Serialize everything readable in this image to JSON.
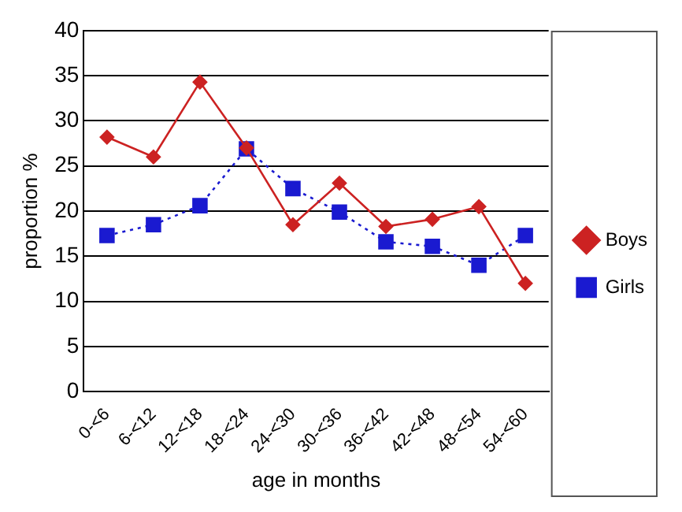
{
  "chart_data": {
    "type": "line",
    "xlabel": "age in months",
    "ylabel": "proportion %",
    "categories": [
      "0-<6",
      "6-<12",
      "12-<18",
      "18-<24",
      "24-<30",
      "30-<36",
      "36-<42",
      "42-<48",
      "48-<54",
      "54-<60"
    ],
    "series": [
      {
        "name": "Boys",
        "color": "#cc2222",
        "marker": "diamond",
        "line_style": "solid",
        "values": [
          28.2,
          26,
          34.3,
          27,
          18.5,
          23.1,
          18.3,
          19.1,
          20.5,
          12
        ]
      },
      {
        "name": "Girls",
        "color": "#1a1ad0",
        "marker": "square",
        "line_style": "dotted",
        "values": [
          17.3,
          18.5,
          20.6,
          26.9,
          22.5,
          19.9,
          16.6,
          16.1,
          14,
          17.3
        ]
      }
    ],
    "ylim": [
      0,
      40
    ],
    "yticks": [
      0,
      5,
      10,
      15,
      20,
      25,
      30,
      35,
      40
    ],
    "grid": "y",
    "legend": "right"
  }
}
